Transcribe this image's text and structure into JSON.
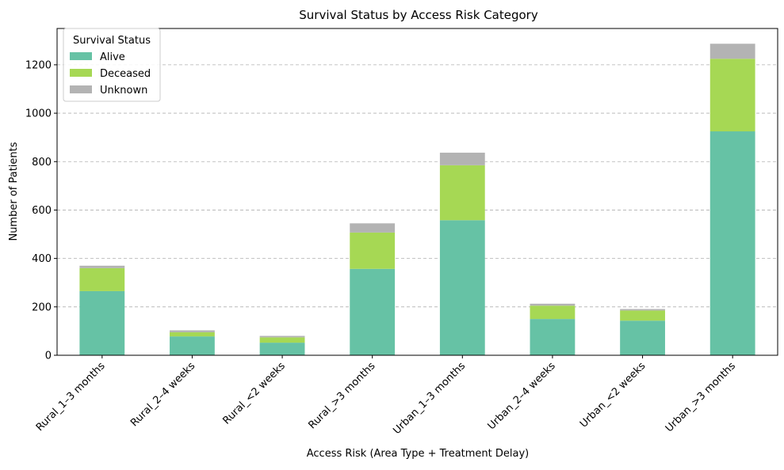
{
  "chart_data": {
    "type": "bar",
    "stacked": true,
    "title": "Survival Status by Access Risk Category",
    "xlabel": "Access Risk (Area Type + Treatment Delay)",
    "ylabel": "Number of Patients",
    "ylim": [
      0,
      1350
    ],
    "yticks": [
      0,
      200,
      400,
      600,
      800,
      1000,
      1200
    ],
    "grid": "y-dashed",
    "categories": [
      "Rural_1–3 months",
      "Rural_2–4 weeks",
      "Rural_<2 weeks",
      "Rural_>3 months",
      "Urban_1–3 months",
      "Urban_2–4 weeks",
      "Urban_<2 weeks",
      "Urban_>3 months"
    ],
    "series": [
      {
        "name": "Alive",
        "color": "#66c2a5",
        "values": [
          265,
          78,
          52,
          357,
          558,
          150,
          143,
          925
        ]
      },
      {
        "name": "Deceased",
        "color": "#a6d854",
        "values": [
          95,
          17,
          22,
          150,
          227,
          55,
          42,
          300
        ]
      },
      {
        "name": "Unknown",
        "color": "#b3b3b3",
        "values": [
          10,
          8,
          6,
          38,
          52,
          8,
          6,
          62
        ]
      }
    ],
    "legend": {
      "title": "Survival Status",
      "position": "top-left"
    }
  }
}
